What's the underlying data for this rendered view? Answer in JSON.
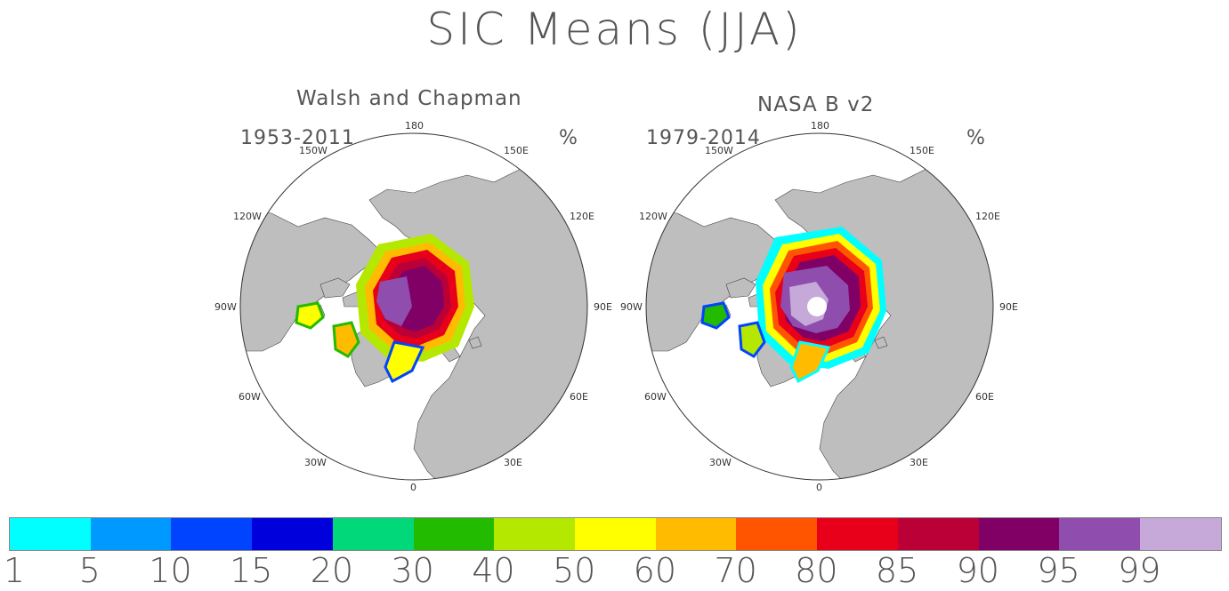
{
  "title": "SIC Means (JJA)",
  "panels": [
    {
      "name": "Walsh and Chapman",
      "years": "1953-2011",
      "units": "%",
      "lon_labels": [
        "180",
        "150E",
        "120E",
        "90E",
        "60E",
        "30E",
        "0",
        "30W",
        "60W",
        "90W",
        "120W",
        "150W"
      ]
    },
    {
      "name": "NASA B v2",
      "years": "1979-2014",
      "units": "%",
      "lon_labels": [
        "180",
        "150E",
        "120E",
        "90E",
        "60E",
        "30E",
        "0",
        "30W",
        "60W",
        "90W",
        "120W",
        "150W"
      ]
    }
  ],
  "colorbar": {
    "labels": [
      "1",
      "5",
      "10",
      "15",
      "20",
      "30",
      "40",
      "50",
      "60",
      "70",
      "80",
      "85",
      "90",
      "95",
      "99"
    ],
    "colors": [
      "#00ffff",
      "#0099ff",
      "#0044ff",
      "#0000dd",
      "#00d87a",
      "#22bb00",
      "#b5e800",
      "#ffff00",
      "#ffbb00",
      "#ff5500",
      "#e8001a",
      "#bb0038",
      "#800066",
      "#8f4dad",
      "#c6a9d9"
    ]
  },
  "colors": {
    "land": "#bebebe",
    "ocean": "#ffffff"
  }
}
